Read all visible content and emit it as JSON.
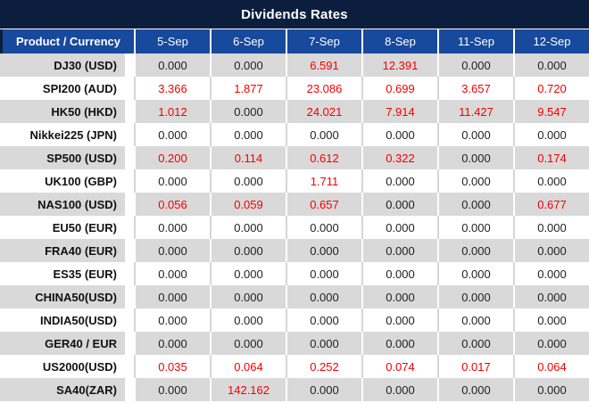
{
  "title": "Dividends Rates",
  "colors": {
    "title_bar": "#0B1E3D",
    "header_blue": "#17499D",
    "row_gray": "#D9D9D9",
    "value_red": "#F40000",
    "text_dark": "#1F1F1F",
    "separator_light": "#D6D6D6"
  },
  "table": {
    "header": [
      "Product / Currency",
      "5-Sep",
      "6-Sep",
      "7-Sep",
      "8-Sep",
      "11-Sep",
      "12-Sep"
    ],
    "rows": [
      {
        "product": "DJ30 (USD)",
        "values": [
          "0.000",
          "0.000",
          "6.591",
          "12.391",
          "0.000",
          "0.000"
        ],
        "red": [
          false,
          false,
          true,
          true,
          false,
          false
        ]
      },
      {
        "product": "SPI200 (AUD)",
        "values": [
          "3.366",
          "1.877",
          "23.086",
          "0.699",
          "3.657",
          "0.720"
        ],
        "red": [
          true,
          true,
          true,
          true,
          true,
          true
        ]
      },
      {
        "product": "HK50 (HKD)",
        "values": [
          "1.012",
          "0.000",
          "24.021",
          "7.914",
          "11.427",
          "9.547"
        ],
        "red": [
          true,
          false,
          true,
          true,
          true,
          true
        ]
      },
      {
        "product": "Nikkei225 (JPN)",
        "values": [
          "0.000",
          "0.000",
          "0.000",
          "0.000",
          "0.000",
          "0.000"
        ],
        "red": [
          false,
          false,
          false,
          false,
          false,
          false
        ]
      },
      {
        "product": "SP500 (USD)",
        "values": [
          "0.200",
          "0.114",
          "0.612",
          "0.322",
          "0.000",
          "0.174"
        ],
        "red": [
          true,
          true,
          true,
          true,
          false,
          true
        ]
      },
      {
        "product": "UK100 (GBP)",
        "values": [
          "0.000",
          "0.000",
          "1.711",
          "0.000",
          "0.000",
          "0.000"
        ],
        "red": [
          false,
          false,
          true,
          false,
          false,
          false
        ]
      },
      {
        "product": "NAS100 (USD)",
        "values": [
          "0.056",
          "0.059",
          "0.657",
          "0.000",
          "0.000",
          "0.677"
        ],
        "red": [
          true,
          true,
          true,
          false,
          false,
          true
        ]
      },
      {
        "product": "EU50 (EUR)",
        "values": [
          "0.000",
          "0.000",
          "0.000",
          "0.000",
          "0.000",
          "0.000"
        ],
        "red": [
          false,
          false,
          false,
          false,
          false,
          false
        ]
      },
      {
        "product": "FRA40 (EUR)",
        "values": [
          "0.000",
          "0.000",
          "0.000",
          "0.000",
          "0.000",
          "0.000"
        ],
        "red": [
          false,
          false,
          false,
          false,
          false,
          false
        ]
      },
      {
        "product": "ES35 (EUR)",
        "values": [
          "0.000",
          "0.000",
          "0.000",
          "0.000",
          "0.000",
          "0.000"
        ],
        "red": [
          false,
          false,
          false,
          false,
          false,
          false
        ]
      },
      {
        "product": "CHINA50(USD)",
        "values": [
          "0.000",
          "0.000",
          "0.000",
          "0.000",
          "0.000",
          "0.000"
        ],
        "red": [
          false,
          false,
          false,
          false,
          false,
          false
        ]
      },
      {
        "product": "INDIA50(USD)",
        "values": [
          "0.000",
          "0.000",
          "0.000",
          "0.000",
          "0.000",
          "0.000"
        ],
        "red": [
          false,
          false,
          false,
          false,
          false,
          false
        ]
      },
      {
        "product": "GER40 / EUR",
        "values": [
          "0.000",
          "0.000",
          "0.000",
          "0.000",
          "0.000",
          "0.000"
        ],
        "red": [
          false,
          false,
          false,
          false,
          false,
          false
        ]
      },
      {
        "product": "US2000(USD)",
        "values": [
          "0.035",
          "0.064",
          "0.252",
          "0.074",
          "0.017",
          "0.064"
        ],
        "red": [
          true,
          true,
          true,
          true,
          true,
          true
        ]
      },
      {
        "product": "SA40(ZAR)",
        "values": [
          "0.000",
          "142.162",
          "0.000",
          "0.000",
          "0.000",
          "0.000"
        ],
        "red": [
          false,
          true,
          false,
          false,
          false,
          false
        ]
      }
    ]
  }
}
